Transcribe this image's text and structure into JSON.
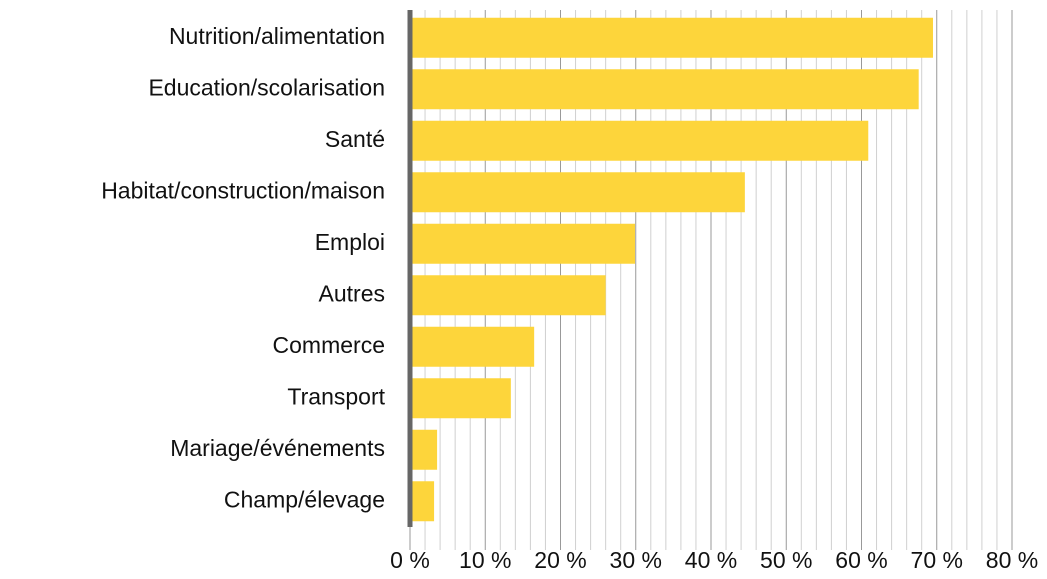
{
  "chart_data": {
    "type": "bar",
    "orientation": "horizontal",
    "categories": [
      "Nutrition/alimentation",
      "Education/scolarisation",
      "Santé",
      "Habitat/construction/maison",
      "Emploi",
      "Autres",
      "Commerce",
      "Transport",
      "Mariage/événements",
      "Champ/élevage"
    ],
    "values": [
      69.5,
      67.6,
      60.9,
      44.5,
      29.9,
      26.0,
      16.5,
      13.4,
      3.6,
      3.2
    ],
    "color": "#fdd53b",
    "xlim": [
      0,
      80
    ],
    "xticks": [
      {
        "value": 0,
        "label": "0 %"
      },
      {
        "value": 10,
        "label": "10 %"
      },
      {
        "value": 20,
        "label": "20 %"
      },
      {
        "value": 30,
        "label": "30 %"
      },
      {
        "value": 40,
        "label": "40 %"
      },
      {
        "value": 50,
        "label": "50 %"
      },
      {
        "value": 60,
        "label": "60 %"
      },
      {
        "value": 70,
        "label": "70 %"
      },
      {
        "value": 80,
        "label": "80 %"
      }
    ],
    "grid": true,
    "minor_grid": true
  }
}
